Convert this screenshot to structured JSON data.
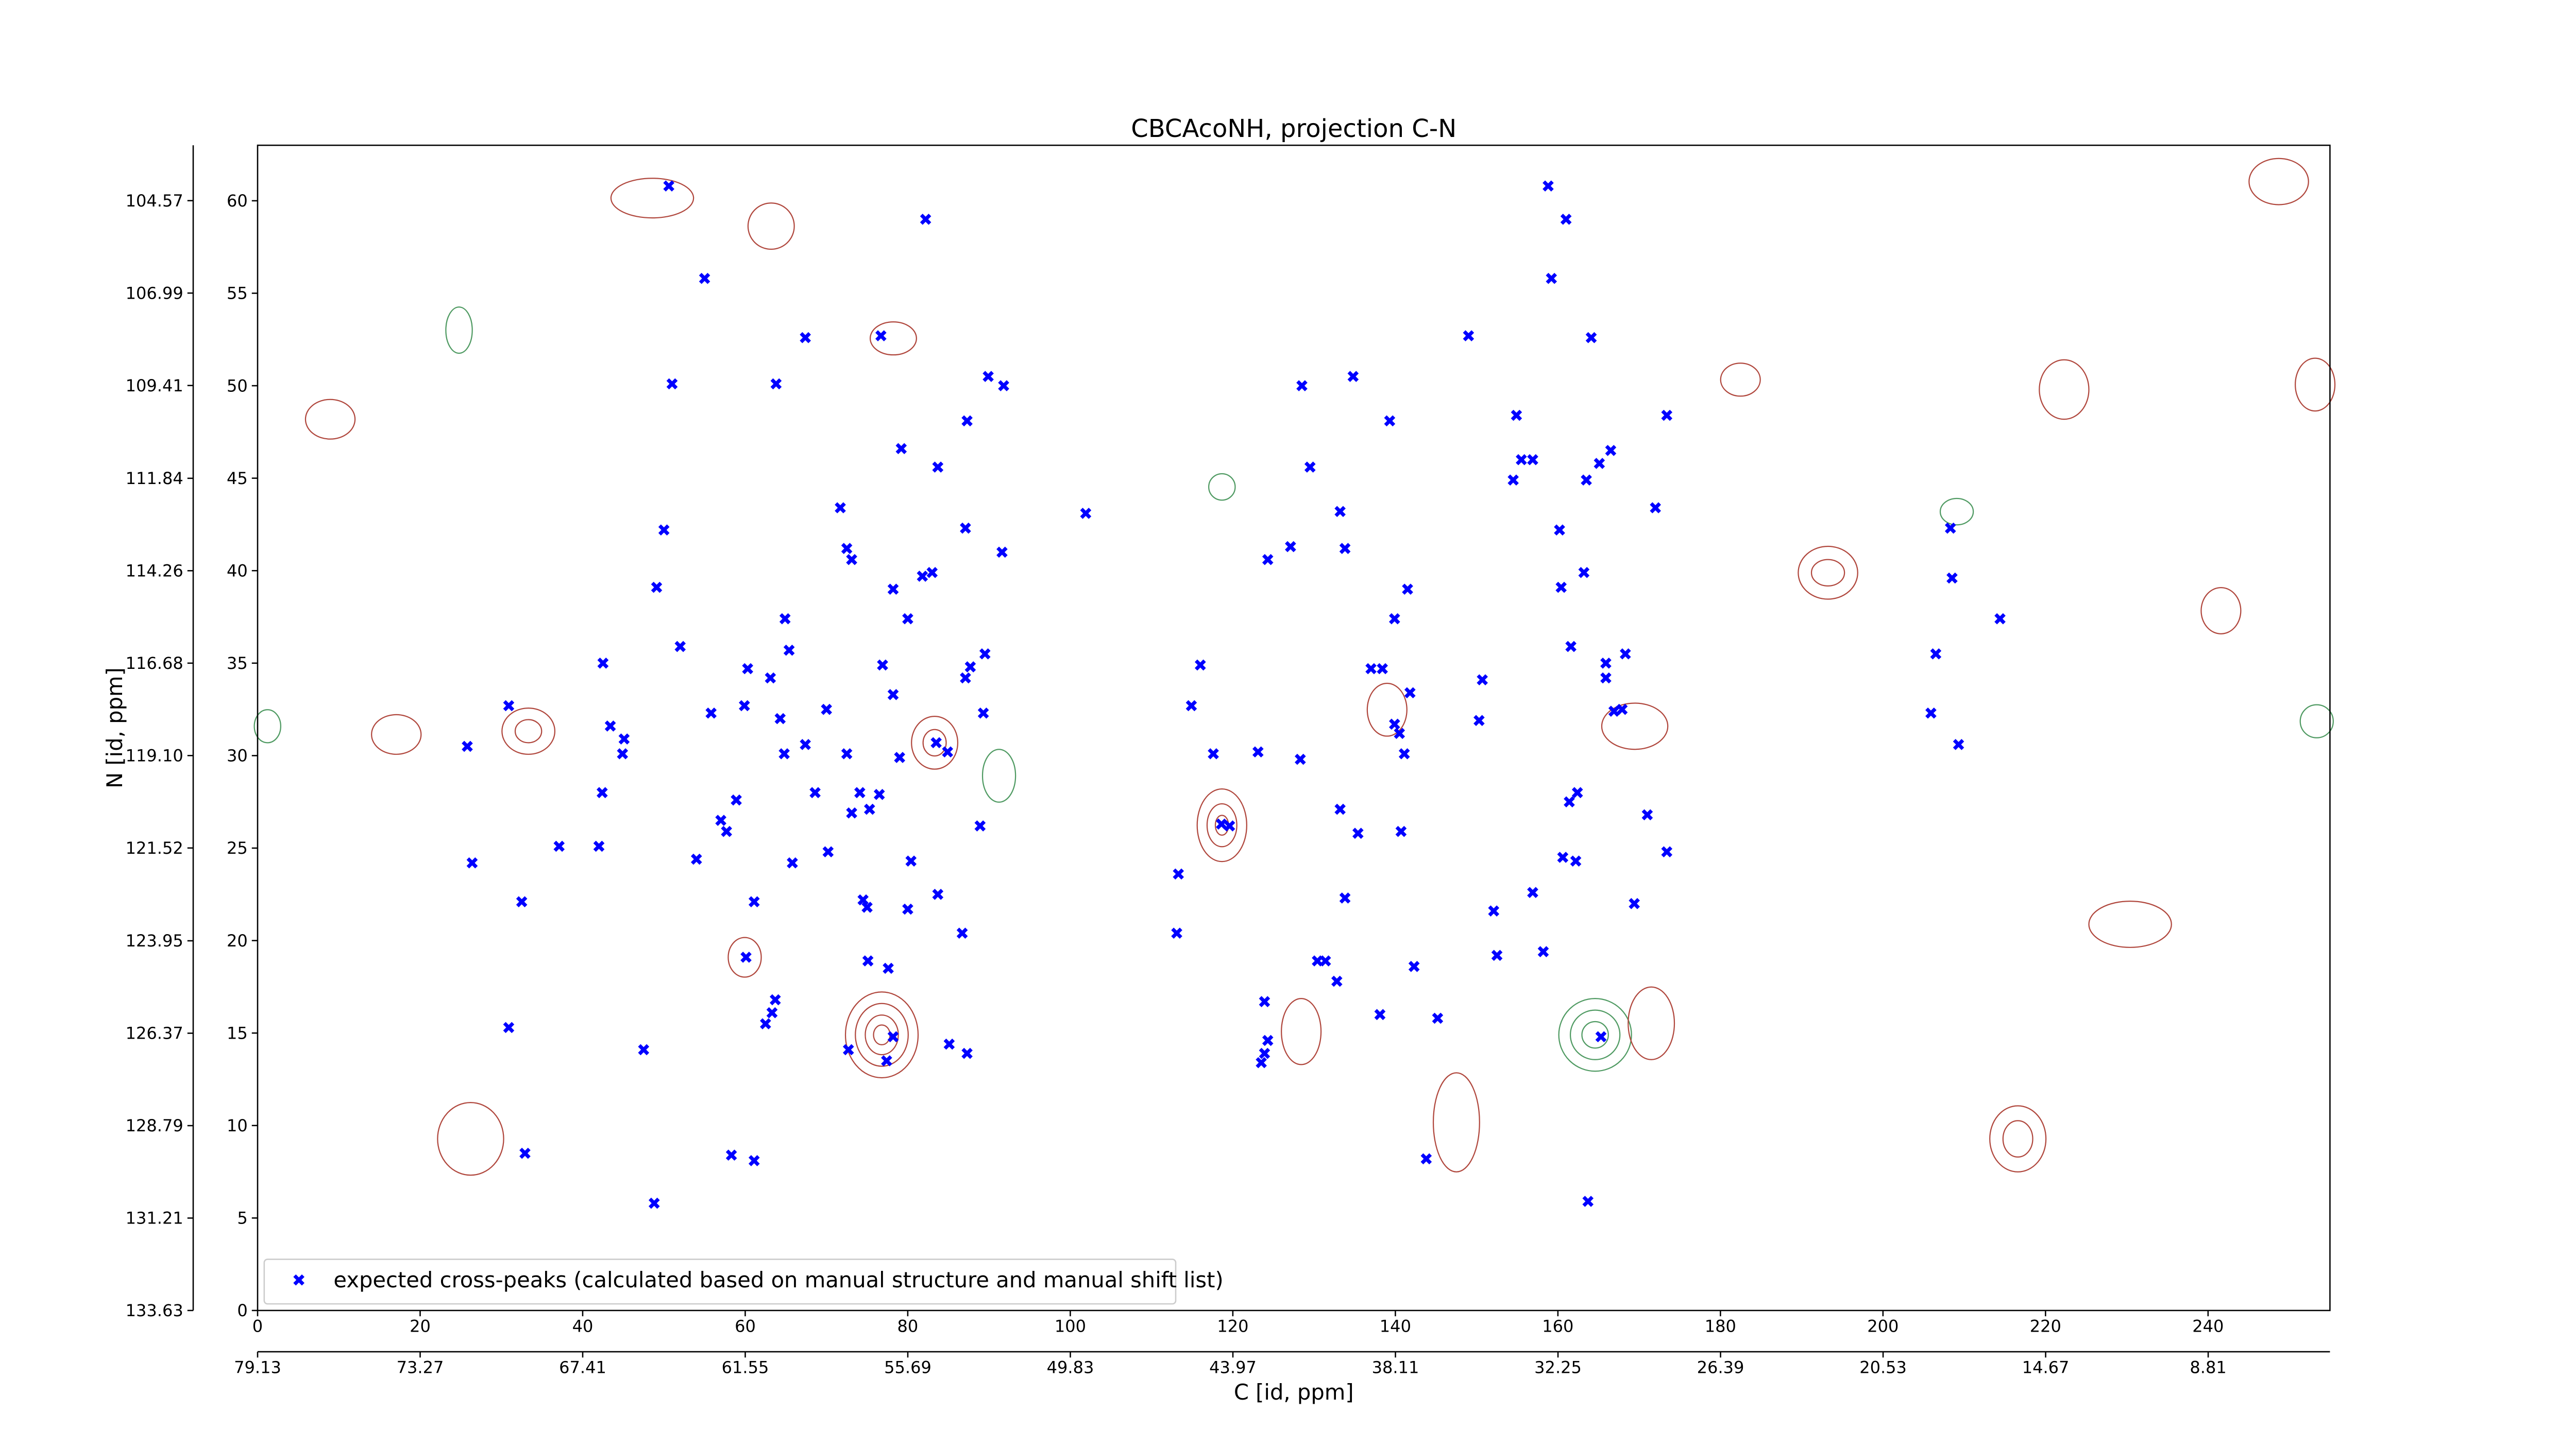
{
  "chart_data": {
    "type": "scatter",
    "title": "CBCAcoNH, projection C-N",
    "xlabel": "C [id, ppm]",
    "ylabel": "N [id, ppm]",
    "xlim": [
      0,
      255
    ],
    "ylim": [
      0,
      63
    ],
    "xticks": [
      0,
      20,
      40,
      60,
      80,
      100,
      120,
      140,
      160,
      180,
      200,
      220,
      240
    ],
    "yticks": [
      0,
      5,
      10,
      15,
      20,
      25,
      30,
      35,
      40,
      45,
      50,
      55,
      60
    ],
    "x2lim": [
      79.13,
      4.42
    ],
    "x2ticks": [
      79.13,
      73.27,
      67.41,
      61.55,
      55.69,
      49.83,
      43.97,
      38.11,
      32.25,
      26.39,
      20.53,
      14.67,
      8.81
    ],
    "y2lim": [
      133.63,
      103.12
    ],
    "y2ticks": [
      133.63,
      131.21,
      128.79,
      126.37,
      123.95,
      121.52,
      {
        "value": 119.1,
        "label": "119.10"
      },
      116.68,
      114.26,
      111.84,
      109.41,
      106.99,
      104.57
    ],
    "legend": "lower left",
    "series": [
      {
        "name": "expected cross-peaks (calculated based on manual structure and manual shift list)",
        "color": "#0000ff",
        "marker": "X",
        "x": [
          50.6,
          82.2,
          55.0,
          67.4,
          76.7,
          51.0,
          63.8,
          89.9,
          91.8,
          79.2,
          87.3,
          83.7,
          71.7,
          50.0,
          72.5,
          73.1,
          87.1,
          91.6,
          101.9,
          49.1,
          78.2,
          81.8,
          83.0,
          64.9,
          80.0,
          52.0,
          65.4,
          42.5,
          60.3,
          63.1,
          76.9,
          89.5,
          87.7,
          87.1,
          78.2,
          55.8,
          59.9,
          64.3,
          70.0,
          30.9,
          43.4,
          45.1,
          44.9,
          25.8,
          64.8,
          67.4,
          72.5,
          79.0,
          83.5,
          84.9,
          89.3,
          58.9,
          42.4,
          68.6,
          74.1,
          76.5,
          75.3,
          73.1,
          57.0,
          57.7,
          88.9,
          37.1,
          42.0,
          54.0,
          70.2,
          65.8,
          80.4,
          26.4,
          32.5,
          61.1,
          74.5,
          75.0,
          80.0,
          83.7,
          86.7,
          60.1,
          75.1,
          77.6,
          63.7,
          63.3,
          62.5,
          78.2,
          72.7,
          77.4,
          85.1,
          87.3,
          47.5,
          30.9,
          32.9,
          58.3,
          61.1,
          48.8,
          118.6,
          119.6,
          113.3,
          113.1,
          116.0,
          114.9,
          117.6,
          123.1,
          128.3,
          128.5,
          134.8,
          139.3,
          129.5,
          124.3,
          127.1,
          133.2,
          133.8,
          141.5,
          139.9,
          137.0,
          138.4,
          141.8,
          139.9,
          140.5,
          141.1,
          133.2,
          135.4,
          140.7,
          133.8,
          130.4,
          131.4,
          132.8,
          138.1,
          142.3,
          145.2,
          123.9,
          124.3,
          123.9,
          123.5,
          143.8,
          149.0,
          154.9,
          155.5,
          156.9,
          154.5,
          158.8,
          161.0,
          159.2,
          164.1,
          166.5,
          165.1,
          163.5,
          160.2,
          172.0,
          173.4,
          163.2,
          160.4,
          161.6,
          150.7,
          150.3,
          165.9,
          168.3,
          165.9,
          166.9,
          167.9,
          162.4,
          161.4,
          171.0,
          173.4,
          160.6,
          162.2,
          156.9,
          169.4,
          152.1,
          152.5,
          158.2,
          165.3,
          163.7,
          208.3,
          208.5,
          214.4,
          206.5,
          205.9,
          209.3
        ],
        "y": [
          60.8,
          59.0,
          55.8,
          52.6,
          52.7,
          50.1,
          50.1,
          50.5,
          50.0,
          46.6,
          48.1,
          45.6,
          43.4,
          42.2,
          41.2,
          40.6,
          42.3,
          41.0,
          43.1,
          39.1,
          39.0,
          39.7,
          39.9,
          37.4,
          37.4,
          35.9,
          35.7,
          35.0,
          34.7,
          34.2,
          34.9,
          35.5,
          34.8,
          34.2,
          33.3,
          32.3,
          32.7,
          32.0,
          32.5,
          32.7,
          31.6,
          30.9,
          30.1,
          30.5,
          30.1,
          30.6,
          30.1,
          29.9,
          30.7,
          30.2,
          32.3,
          27.6,
          28.0,
          28.0,
          28.0,
          27.9,
          27.1,
          26.9,
          26.5,
          25.9,
          26.2,
          25.1,
          25.1,
          24.4,
          24.8,
          24.2,
          24.3,
          24.2,
          22.1,
          22.1,
          22.2,
          21.8,
          21.7,
          22.5,
          20.4,
          19.1,
          18.9,
          18.5,
          16.8,
          16.1,
          15.5,
          14.8,
          14.1,
          13.5,
          14.4,
          13.9,
          14.1,
          15.3,
          8.5,
          8.4,
          8.1,
          5.8,
          26.3,
          26.2,
          23.6,
          20.4,
          34.9,
          32.7,
          30.1,
          30.2,
          29.8,
          50.0,
          50.5,
          48.1,
          45.6,
          40.6,
          41.3,
          43.2,
          41.2,
          39.0,
          37.4,
          34.7,
          34.7,
          33.4,
          31.7,
          31.2,
          30.1,
          27.1,
          25.8,
          25.9,
          22.3,
          18.9,
          18.9,
          17.8,
          16.0,
          18.6,
          15.8,
          16.7,
          14.6,
          13.9,
          13.4,
          8.2,
          52.7,
          48.4,
          46.0,
          46.0,
          44.9,
          60.8,
          59.0,
          55.8,
          52.6,
          46.5,
          45.8,
          44.9,
          42.2,
          43.4,
          48.4,
          39.9,
          39.1,
          35.9,
          34.1,
          31.9,
          35.0,
          35.5,
          34.2,
          32.4,
          32.5,
          28.0,
          27.5,
          26.8,
          24.8,
          24.5,
          24.3,
          22.6,
          22.0,
          21.6,
          19.2,
          19.4,
          14.8,
          5.9,
          42.3,
          39.6,
          37.4,
          35.5,
          32.3,
          30.6
        ]
      }
    ]
  }
}
